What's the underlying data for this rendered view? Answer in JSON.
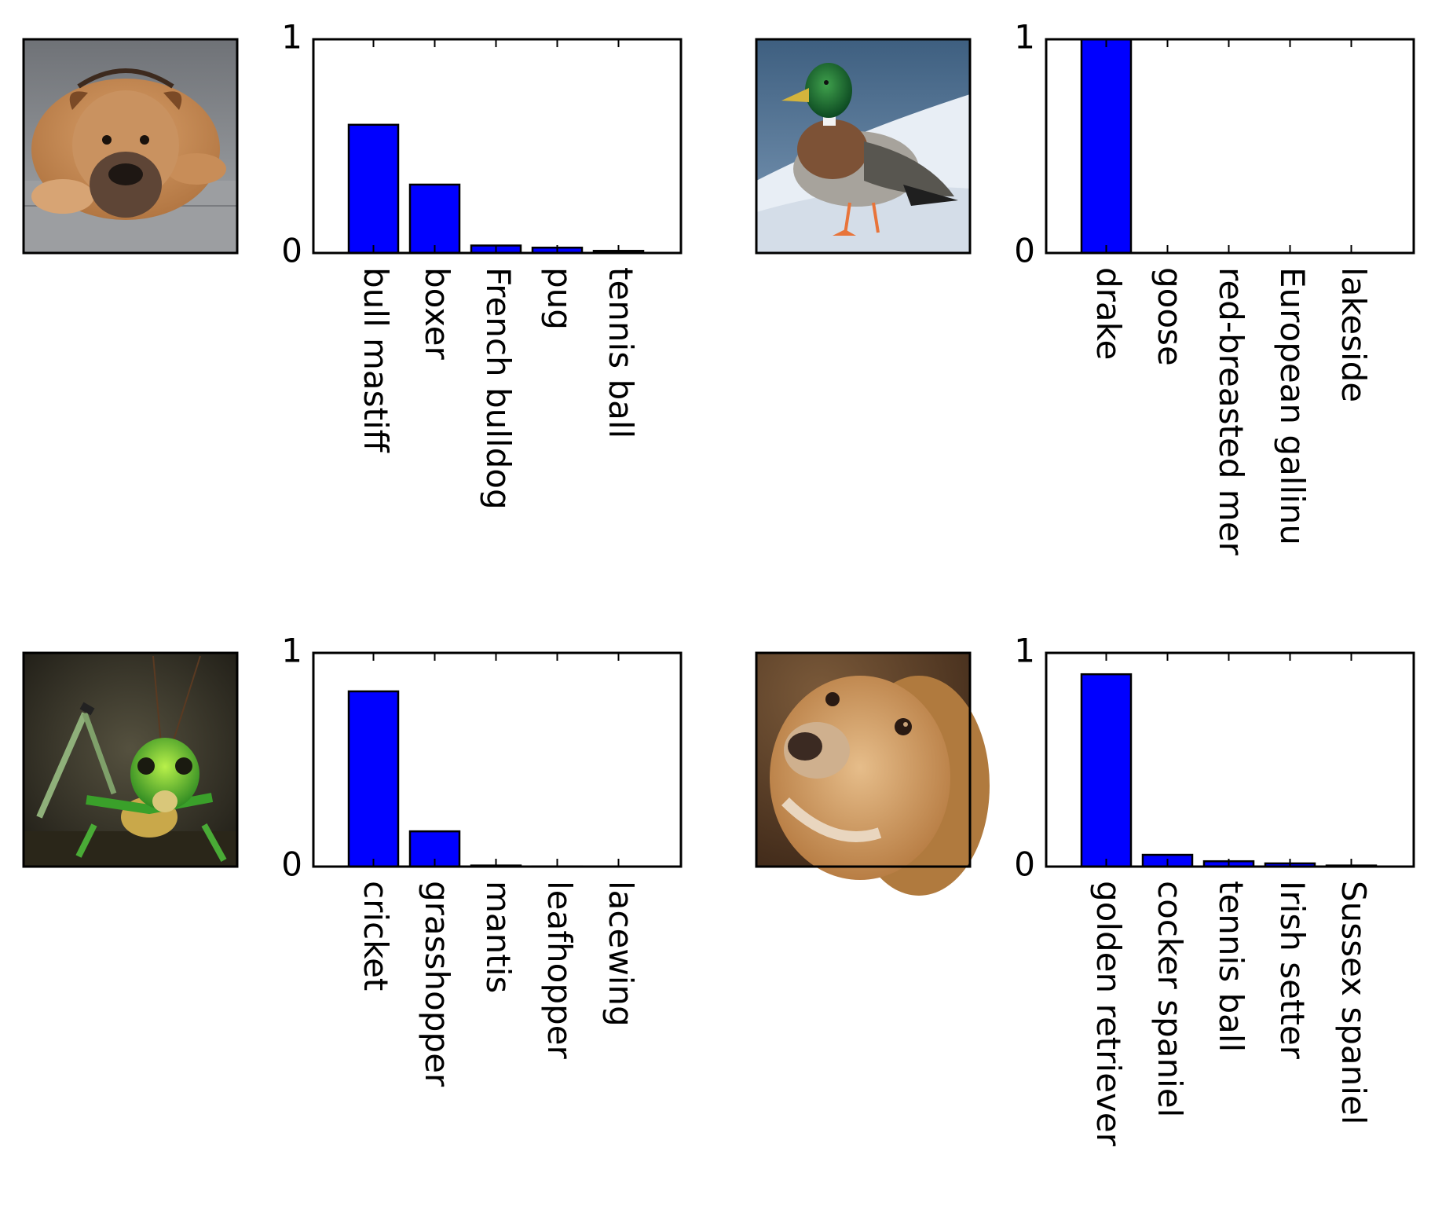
{
  "chart_data": [
    {
      "type": "bar",
      "image": "bull mastiff photo",
      "categories": [
        "bull mastiff",
        "boxer",
        "French bulldog",
        "pug",
        "tennis ball"
      ],
      "values": [
        0.6,
        0.32,
        0.035,
        0.025,
        0.01
      ],
      "yticks": [
        "0",
        "1"
      ],
      "ylim": [
        0,
        1
      ]
    },
    {
      "type": "bar",
      "image": "mallard drake photo",
      "categories": [
        "drake",
        "goose",
        "red-breasted mer",
        "European gallinu",
        "lakeside"
      ],
      "values": [
        1.0,
        0.0,
        0.0,
        0.0,
        0.0
      ],
      "yticks": [
        "0",
        "1"
      ],
      "ylim": [
        0,
        1
      ]
    },
    {
      "type": "bar",
      "image": "green cricket photo",
      "categories": [
        "cricket",
        "grasshopper",
        "mantis",
        "leafhopper",
        "lacewing"
      ],
      "values": [
        0.82,
        0.165,
        0.005,
        0.001,
        0.0005
      ],
      "yticks": [
        "0",
        "1"
      ],
      "ylim": [
        0,
        1
      ]
    },
    {
      "type": "bar",
      "image": "golden retriever photo",
      "categories": [
        "golden retriever",
        "cocker spaniel",
        "tennis ball",
        "Irish setter",
        "Sussex spaniel"
      ],
      "values": [
        0.9,
        0.055,
        0.025,
        0.015,
        0.005
      ],
      "yticks": [
        "0",
        "1"
      ],
      "ylim": [
        0,
        1
      ]
    }
  ],
  "colors": {
    "bar": "#0000ff",
    "axis": "#000000"
  }
}
